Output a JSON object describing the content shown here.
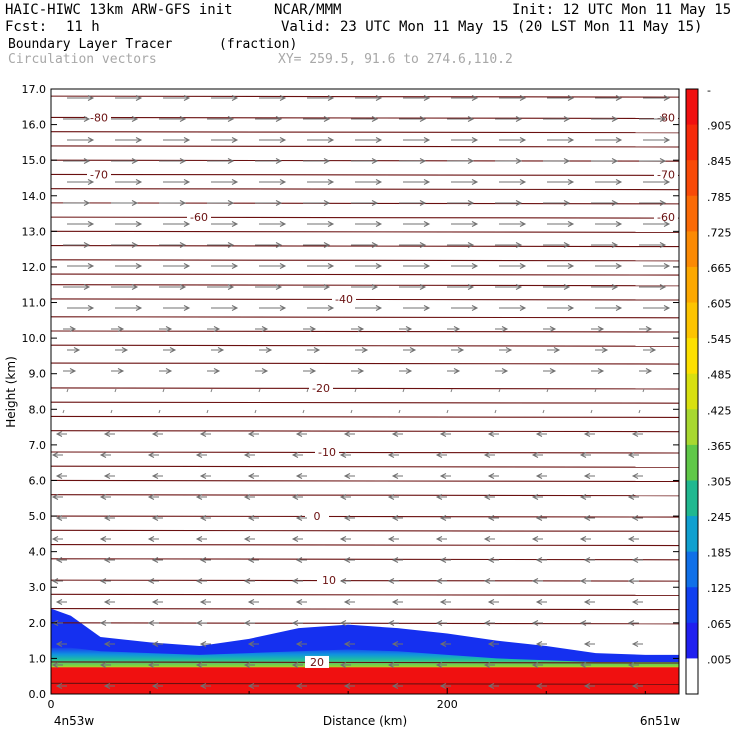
{
  "header": {
    "model": "HAIC-HIWC 13km ARW-GFS init",
    "org": "NCAR/MMM",
    "init": "Init: 12 UTC Mon 11 May 15",
    "fcst_label": "Fcst:",
    "fcst_value": "11 h",
    "valid": "Valid: 23 UTC Mon 11 May 15 (20 LST Mon 11 May 15)",
    "field": "Boundary Layer Tracer",
    "field_units": "(fraction)",
    "vectors": "Circulation vectors",
    "xy": "XY= 259.5, 91.6 to 274.6,110.2"
  },
  "chart_data": {
    "type": "heatmap",
    "xlabel": "Distance (km)",
    "ylabel": "Height (km)",
    "xlim": [
      0,
      317
    ],
    "ylim": [
      0,
      17
    ],
    "x_ticks": [
      "0",
      "200"
    ],
    "x_tick_values": [
      0,
      200
    ],
    "x_end_labels": {
      "left": "4n53w",
      "right": "6n51w"
    },
    "y_ticks": [
      "0.0",
      "1.0",
      "2.0",
      "3.0",
      "4.0",
      "5.0",
      "6.0",
      "7.0",
      "8.0",
      "9.0",
      "10.0",
      "11.0",
      "12.0",
      "13.0",
      "14.0",
      "15.0",
      "16.0",
      "17.0"
    ],
    "colorbar": {
      "labels": [
        "-",
        ".905",
        ".845",
        ".785",
        ".725",
        ".665",
        ".605",
        ".545",
        ".485",
        ".425",
        ".365",
        ".305",
        ".245",
        ".185",
        ".125",
        ".065",
        ".005"
      ],
      "colors": [
        "#f01010",
        "#f52a0a",
        "#f84a08",
        "#fa6a06",
        "#fb8a04",
        "#fca800",
        "#fdc400",
        "#fde000",
        "#d8e010",
        "#a8d830",
        "#60c848",
        "#20b890",
        "#10a0d0",
        "#1070e8",
        "#1040f0",
        "#2020f0",
        "#ffffff"
      ]
    },
    "tracer_profile": {
      "x": [
        0,
        10,
        25,
        50,
        75,
        100,
        125,
        150,
        175,
        200,
        225,
        250,
        275,
        300,
        317
      ],
      "top_km": [
        2.4,
        2.2,
        1.6,
        1.45,
        1.35,
        1.55,
        1.85,
        1.95,
        1.85,
        1.7,
        1.5,
        1.35,
        1.15,
        1.1,
        1.1
      ],
      "saturated_top_km": [
        1.3,
        1.3,
        1.2,
        1.15,
        1.1,
        1.15,
        1.2,
        1.25,
        1.2,
        1.1,
        1.0,
        0.95,
        0.9,
        0.9,
        0.9
      ]
    },
    "contours": [
      {
        "label": "-80",
        "height_km": 16.2
      },
      {
        "label": "-70",
        "height_km": 14.6
      },
      {
        "label": "-60",
        "height_km": 13.4
      },
      {
        "label": "-40",
        "height_km": 11.1
      },
      {
        "label": "-20",
        "height_km": 8.6
      },
      {
        "label": "-10",
        "height_km": 6.8
      },
      {
        "label": "0",
        "height_km": 5.0
      },
      {
        "label": "10",
        "height_km": 3.2
      },
      {
        "label": "20",
        "height_km": 0.9
      }
    ],
    "contour_unlabeled_km": [
      16.8,
      15.8,
      15.4,
      15.0,
      14.2,
      13.8,
      13.0,
      12.6,
      12.2,
      11.8,
      11.5,
      10.6,
      10.2,
      9.8,
      9.3,
      8.2,
      7.8,
      7.4,
      6.4,
      6.0,
      5.6,
      4.6,
      4.2,
      3.8,
      2.8,
      2.4,
      2.0,
      0.3
    ]
  }
}
